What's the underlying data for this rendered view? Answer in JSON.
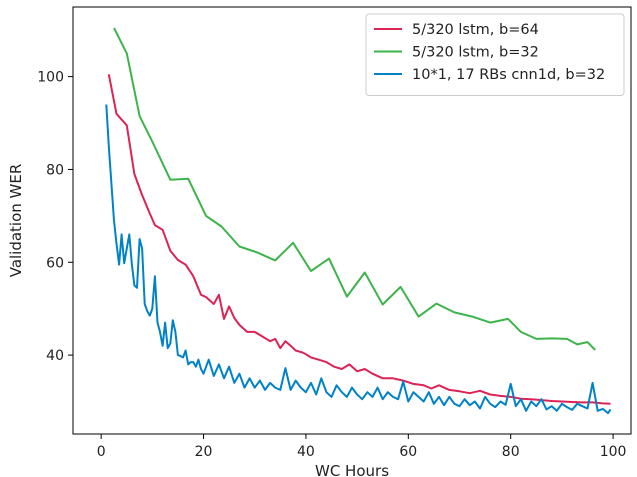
{
  "chart_data": {
    "type": "line",
    "xlabel": "WC Hours",
    "ylabel": "Validation WER",
    "xlim": [
      -5.5,
      103.5
    ],
    "ylim": [
      23,
      115
    ],
    "xticks": [
      0,
      20,
      40,
      60,
      80,
      100
    ],
    "yticks": [
      40,
      60,
      80,
      100
    ],
    "legend_position": "top-right",
    "series": [
      {
        "name": "5/320 lstm, b=64",
        "color": "#dc2356",
        "x": [
          1.5,
          3,
          5,
          6.5,
          8,
          9.5,
          10.5,
          12,
          13.5,
          15,
          16.5,
          18,
          19.5,
          20.5,
          22,
          23,
          24,
          25,
          26,
          27,
          28.5,
          30,
          31.5,
          33,
          34,
          35,
          36,
          37,
          38,
          39.5,
          41,
          42.5,
          44,
          45.5,
          47,
          48.5,
          50,
          51.5,
          53,
          55,
          57,
          59,
          61,
          63,
          64.5,
          66,
          68,
          70,
          72,
          74,
          76,
          78,
          80,
          82,
          84,
          86,
          88,
          90,
          92,
          94,
          96,
          98,
          99.5
        ],
        "y": [
          100.5,
          92,
          89.5,
          79,
          74.5,
          70.5,
          68,
          67,
          62.5,
          60.5,
          59.5,
          57,
          53,
          52.5,
          51,
          53,
          47.8,
          50.5,
          48,
          46.5,
          45,
          45,
          44,
          43,
          43.5,
          41.5,
          43,
          42,
          41,
          40.5,
          39.5,
          39,
          38.5,
          37.5,
          37,
          38,
          36.5,
          37,
          36,
          35,
          35,
          34.5,
          33.8,
          33.5,
          32.8,
          33.5,
          32.5,
          32.2,
          31.8,
          32.3,
          31.5,
          31.2,
          31,
          30.6,
          30.5,
          30.3,
          30.1,
          30,
          29.9,
          29.8,
          29.8,
          29.6,
          29.5
        ]
      },
      {
        "name": "5/320 lstm, b=32",
        "color": "#3cb44b",
        "x": [
          2.5,
          5,
          7.5,
          10,
          13.5,
          17,
          20.5,
          23.5,
          27,
          30.5,
          34,
          37.5,
          41,
          44.5,
          48,
          51.5,
          55,
          58.5,
          62,
          65.5,
          69,
          72.5,
          76,
          79.5,
          82,
          85,
          88,
          91,
          93,
          95,
          96.5
        ],
        "y": [
          110.5,
          105,
          91.5,
          86,
          77.8,
          78,
          70,
          67.7,
          63.4,
          62.1,
          60.4,
          64.2,
          58.1,
          60.8,
          52.6,
          57.8,
          50.9,
          54.7,
          48.3,
          51.1,
          49.2,
          48.3,
          47,
          47.8,
          45,
          43.5,
          43.6,
          43.5,
          42.3,
          42.8,
          41.1
        ]
      },
      {
        "name": "10*1, 17 RBs cnn1d, b=32",
        "color": "#0082c8",
        "x": [
          1,
          1.5,
          2,
          2.5,
          3,
          3.5,
          4,
          4.5,
          5,
          5.5,
          6,
          6.5,
          7,
          7.5,
          8,
          8.5,
          9,
          9.5,
          10,
          10.5,
          11,
          11.5,
          12,
          12.5,
          13,
          13.5,
          14,
          14.5,
          15,
          15.5,
          16,
          16.5,
          17,
          17.5,
          18,
          18.5,
          19,
          19.5,
          20,
          21,
          22,
          23,
          24,
          25,
          26,
          27,
          28,
          29,
          30,
          31,
          32,
          33,
          34,
          35,
          36,
          37,
          38,
          39,
          40,
          41,
          42,
          43,
          44,
          45,
          46,
          47,
          48,
          49,
          50,
          51,
          52,
          53,
          54,
          55,
          56,
          57,
          58,
          59,
          60,
          61,
          62,
          63,
          64,
          65,
          66,
          67,
          68,
          69,
          70,
          71,
          72,
          73,
          74,
          75,
          76,
          77,
          78,
          79,
          80,
          81,
          82,
          83,
          84,
          85,
          86,
          87,
          88,
          89,
          90,
          91,
          92,
          93,
          94,
          95,
          96,
          97,
          98,
          99,
          99.5
        ],
        "y": [
          94,
          85,
          77,
          69,
          64,
          59.5,
          66,
          59.8,
          63,
          66,
          59.5,
          55,
          54.5,
          65,
          63,
          51,
          49.5,
          48.5,
          50,
          57,
          47,
          45,
          42,
          47,
          41.5,
          42.5,
          47.5,
          45,
          40,
          39.8,
          39.5,
          41,
          38,
          38.5,
          38.5,
          37.5,
          39,
          37,
          36,
          39,
          35.5,
          38,
          35,
          37.5,
          34,
          36,
          33,
          35,
          33,
          34.5,
          32.5,
          34,
          33,
          32.5,
          37.2,
          32.5,
          34.5,
          33,
          32,
          34,
          31.5,
          35,
          32,
          31,
          33.5,
          32,
          31,
          33,
          31.5,
          30.5,
          32,
          31,
          33,
          30.5,
          32,
          31,
          30.5,
          34.3,
          30,
          32,
          31,
          30,
          32,
          29.5,
          31,
          29.2,
          31,
          29.5,
          29,
          30.5,
          29.2,
          30,
          28.5,
          31,
          29.5,
          28.8,
          30,
          29.3,
          33.8,
          29,
          30.5,
          28,
          30,
          29,
          30.5,
          28.3,
          29,
          28,
          29.5,
          28.8,
          28.2,
          29.5,
          29,
          28.5,
          34,
          28,
          28.4,
          27.5,
          28.3
        ]
      }
    ]
  }
}
